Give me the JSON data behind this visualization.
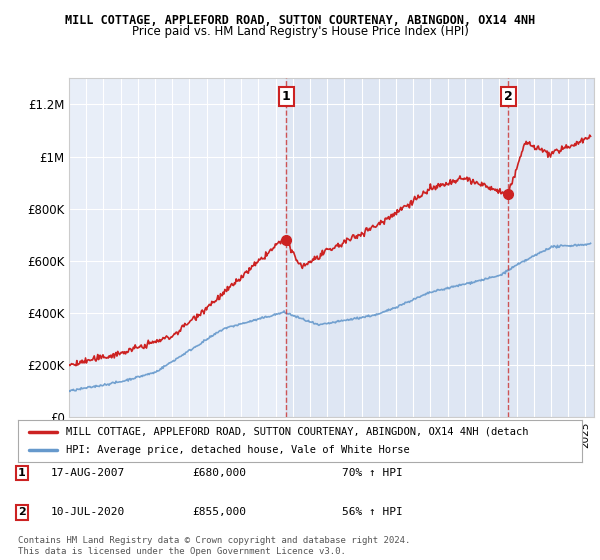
{
  "title_line1": "MILL COTTAGE, APPLEFORD ROAD, SUTTON COURTENAY, ABINGDON, OX14 4NH",
  "title_line2": "Price paid vs. HM Land Registry's House Price Index (HPI)",
  "ylim": [
    0,
    1300000
  ],
  "yticks": [
    0,
    200000,
    400000,
    600000,
    800000,
    1000000,
    1200000
  ],
  "ytick_labels": [
    "£0",
    "£200K",
    "£400K",
    "£600K",
    "£800K",
    "£1M",
    "£1.2M"
  ],
  "sale1_x": 2007.63,
  "sale1_y": 680000,
  "sale1_label": "1",
  "sale2_x": 2020.53,
  "sale2_y": 855000,
  "sale2_label": "2",
  "hpi_color": "#6699cc",
  "price_color": "#cc2222",
  "dashed_color": "#cc4444",
  "bg_color": "#e8eef8",
  "bg_color_right": "#dce8f5",
  "legend_price_label": "MILL COTTAGE, APPLEFORD ROAD, SUTTON COURTENAY, ABINGDON, OX14 4NH (detach",
  "legend_hpi_label": "HPI: Average price, detached house, Vale of White Horse",
  "annotation1_date": "17-AUG-2007",
  "annotation1_price": "£680,000",
  "annotation1_pct": "70% ↑ HPI",
  "annotation2_date": "10-JUL-2020",
  "annotation2_price": "£855,000",
  "annotation2_pct": "56% ↑ HPI",
  "copyright_text": "Contains HM Land Registry data © Crown copyright and database right 2024.\nThis data is licensed under the Open Government Licence v3.0.",
  "xmin": 1995,
  "xmax": 2025.5
}
